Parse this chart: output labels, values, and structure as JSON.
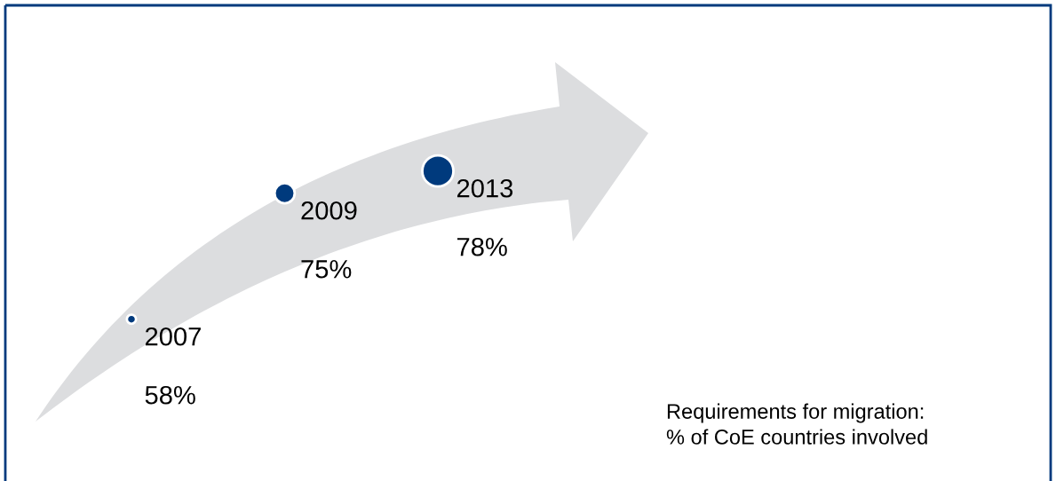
{
  "chart_data": {
    "type": "other",
    "categories": [
      "2007",
      "2009",
      "2013"
    ],
    "values": [
      58,
      75,
      78
    ],
    "value_labels": [
      "58%",
      "75%",
      "78%"
    ],
    "color": "#003a7d",
    "annotations": [
      "Requirements for migration:\n% of CoE countries involved"
    ]
  }
}
